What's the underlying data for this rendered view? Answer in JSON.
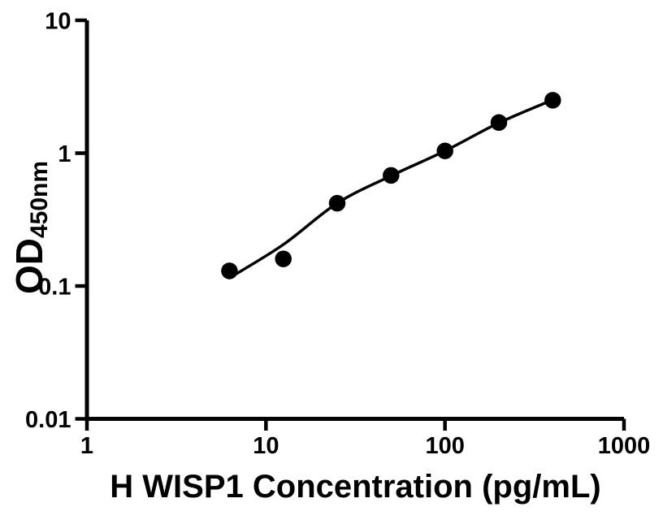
{
  "chart_data": {
    "type": "scatter",
    "title": "",
    "xlabel": "H WISP1 Concentration (pg/mL)",
    "ylabel_main": "OD",
    "ylabel_sub": "450nm",
    "x_scale": "log",
    "y_scale": "log",
    "xlim": [
      1,
      1000
    ],
    "ylim": [
      0.01,
      10
    ],
    "grid": false,
    "legend": false,
    "x_ticks": [
      {
        "value": 1,
        "label": "1"
      },
      {
        "value": 10,
        "label": "10"
      },
      {
        "value": 100,
        "label": "100"
      },
      {
        "value": 1000,
        "label": "1000"
      }
    ],
    "y_ticks": [
      {
        "value": 10,
        "label": "10"
      },
      {
        "value": 1,
        "label": "1"
      },
      {
        "value": 0.1,
        "label": "0.1"
      },
      {
        "value": 0.01,
        "label": "0.01"
      }
    ],
    "series": [
      {
        "name": "standard curve points",
        "marker": "filled-circle",
        "points": [
          {
            "x": 6.25,
            "y": 0.13
          },
          {
            "x": 12.5,
            "y": 0.16
          },
          {
            "x": 25,
            "y": 0.42
          },
          {
            "x": 50,
            "y": 0.68
          },
          {
            "x": 100,
            "y": 1.04
          },
          {
            "x": 200,
            "y": 1.7
          },
          {
            "x": 400,
            "y": 2.5
          }
        ]
      }
    ],
    "fit_curve": [
      {
        "x": 6.25,
        "y": 0.115
      },
      {
        "x": 12.5,
        "y": 0.205
      },
      {
        "x": 25,
        "y": 0.42
      },
      {
        "x": 50,
        "y": 0.675
      },
      {
        "x": 100,
        "y": 1.04
      },
      {
        "x": 200,
        "y": 1.69
      },
      {
        "x": 400,
        "y": 2.52
      }
    ],
    "colors": {
      "marker": "#000000",
      "line": "#000000",
      "axis": "#000000",
      "text": "#000000",
      "background": "#ffffff"
    }
  }
}
